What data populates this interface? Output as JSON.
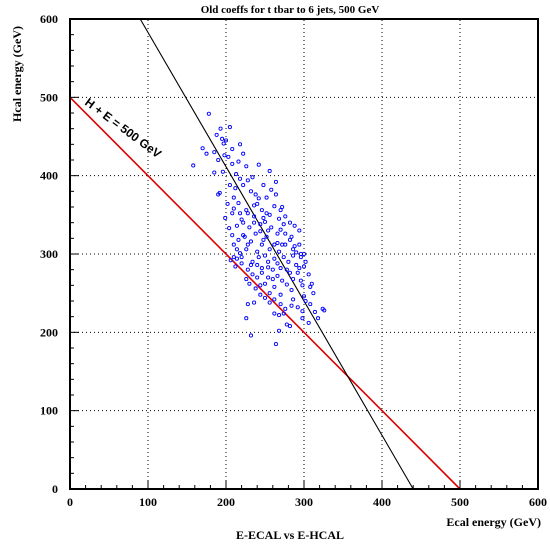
{
  "chart_data": {
    "type": "scatter",
    "title": "Old coeffs for t tbar to 6 jets, 500 GeV",
    "subtitle": "E-ECAL vs E-HCAL",
    "xlabel": "Ecal energy (GeV)",
    "ylabel": "Hcal energy (GeV)",
    "xlim": [
      0,
      600
    ],
    "ylim": [
      0,
      600
    ],
    "x_ticks": [
      0,
      100,
      200,
      300,
      400,
      500,
      600
    ],
    "y_ticks": [
      0,
      100,
      200,
      300,
      400,
      500,
      600
    ],
    "grid": true,
    "marker_color": "#0000ff",
    "annotation": "H + E = 500 GeV",
    "lines": [
      {
        "name": "H + E = 500 GeV",
        "color": "#dd0000",
        "points": [
          [
            0,
            500
          ],
          [
            500,
            0
          ]
        ]
      },
      {
        "name": "",
        "color": "#000000",
        "points": [
          [
            90,
            600
          ],
          [
            440,
            0
          ]
        ]
      }
    ],
    "points": [
      [
        193,
        460
      ],
      [
        195,
        447
      ],
      [
        197,
        441
      ],
      [
        205,
        462
      ],
      [
        178,
        479
      ],
      [
        170,
        435
      ],
      [
        158,
        413
      ],
      [
        175,
        428
      ],
      [
        185,
        430
      ],
      [
        190,
        420
      ],
      [
        198,
        426
      ],
      [
        203,
        424
      ],
      [
        208,
        415
      ],
      [
        213,
        402
      ],
      [
        196,
        405
      ],
      [
        185,
        404
      ],
      [
        192,
        378
      ],
      [
        190,
        376
      ],
      [
        205,
        388
      ],
      [
        212,
        384
      ],
      [
        218,
        396
      ],
      [
        210,
        372
      ],
      [
        216,
        365
      ],
      [
        222,
        388
      ],
      [
        228,
        394
      ],
      [
        232,
        380
      ],
      [
        238,
        376
      ],
      [
        236,
        362
      ],
      [
        242,
        371
      ],
      [
        246,
        356
      ],
      [
        226,
        356
      ],
      [
        220,
        344
      ],
      [
        214,
        336
      ],
      [
        208,
        352
      ],
      [
        204,
        333
      ],
      [
        199,
        346
      ],
      [
        230,
        334
      ],
      [
        236,
        340
      ],
      [
        244,
        329
      ],
      [
        250,
        341
      ],
      [
        256,
        350
      ],
      [
        262,
        361
      ],
      [
        268,
        345
      ],
      [
        258,
        334
      ],
      [
        270,
        331
      ],
      [
        276,
        326
      ],
      [
        282,
        318
      ],
      [
        252,
        322
      ],
      [
        246,
        312
      ],
      [
        240,
        303
      ],
      [
        232,
        316
      ],
      [
        226,
        306
      ],
      [
        218,
        301
      ],
      [
        210,
        296
      ],
      [
        206,
        292
      ],
      [
        212,
        284
      ],
      [
        220,
        288
      ],
      [
        250,
        298
      ],
      [
        256,
        306
      ],
      [
        262,
        312
      ],
      [
        268,
        303
      ],
      [
        274,
        296
      ],
      [
        280,
        290
      ],
      [
        286,
        298
      ],
      [
        290,
        286
      ],
      [
        294,
        282
      ],
      [
        300,
        284
      ],
      [
        306,
        274
      ],
      [
        290,
        302
      ],
      [
        294,
        312
      ],
      [
        266,
        288
      ],
      [
        260,
        280
      ],
      [
        254,
        283
      ],
      [
        246,
        276
      ],
      [
        240,
        286
      ],
      [
        234,
        274
      ],
      [
        226,
        268
      ],
      [
        244,
        260
      ],
      [
        238,
        256
      ],
      [
        230,
        262
      ],
      [
        250,
        262
      ],
      [
        266,
        272
      ],
      [
        272,
        266
      ],
      [
        278,
        261
      ],
      [
        284,
        254
      ],
      [
        296,
        266
      ],
      [
        308,
        258
      ],
      [
        312,
        250
      ],
      [
        302,
        240
      ],
      [
        286,
        242
      ],
      [
        292,
        232
      ],
      [
        298,
        227
      ],
      [
        308,
        236
      ],
      [
        314,
        226
      ],
      [
        318,
        218
      ],
      [
        326,
        228
      ],
      [
        324,
        230
      ],
      [
        298,
        218
      ],
      [
        306,
        212
      ],
      [
        276,
        230
      ],
      [
        270,
        236
      ],
      [
        262,
        242
      ],
      [
        256,
        238
      ],
      [
        268,
        222
      ],
      [
        274,
        224
      ],
      [
        278,
        210
      ],
      [
        268,
        202
      ],
      [
        282,
        208
      ],
      [
        262,
        224
      ],
      [
        244,
        248
      ],
      [
        236,
        238
      ],
      [
        228,
        236
      ],
      [
        226,
        218
      ],
      [
        232,
        196
      ],
      [
        264,
        185
      ],
      [
        250,
        244
      ],
      [
        234,
        290
      ],
      [
        228,
        312
      ],
      [
        222,
        324
      ],
      [
        240,
        364
      ],
      [
        252,
        372
      ],
      [
        258,
        382
      ],
      [
        264,
        392
      ],
      [
        248,
        388
      ],
      [
        234,
        398
      ],
      [
        226,
        412
      ],
      [
        216,
        418
      ],
      [
        208,
        434
      ],
      [
        200,
        445
      ],
      [
        188,
        452
      ],
      [
        222,
        428
      ],
      [
        218,
        440
      ],
      [
        242,
        414
      ],
      [
        256,
        406
      ],
      [
        264,
        376
      ],
      [
        272,
        360
      ],
      [
        276,
        348
      ],
      [
        282,
        340
      ],
      [
        288,
        336
      ],
      [
        294,
        330
      ],
      [
        272,
        312
      ],
      [
        262,
        294
      ],
      [
        254,
        290
      ],
      [
        284,
        322
      ],
      [
        288,
        310
      ],
      [
        244,
        338
      ],
      [
        238,
        326
      ],
      [
        248,
        318
      ],
      [
        224,
        322
      ],
      [
        216,
        318
      ],
      [
        214,
        306
      ],
      [
        252,
        352
      ],
      [
        270,
        356
      ],
      [
        274,
        338
      ],
      [
        242,
        296
      ],
      [
        232,
        286
      ],
      [
        278,
        280
      ],
      [
        282,
        276
      ],
      [
        270,
        282
      ],
      [
        286,
        268
      ],
      [
        292,
        276
      ],
      [
        240,
        270
      ],
      [
        254,
        270
      ],
      [
        296,
        296
      ],
      [
        300,
        300
      ],
      [
        298,
        260
      ],
      [
        300,
        246
      ],
      [
        262,
        258
      ],
      [
        260,
        268
      ],
      [
        246,
        282
      ],
      [
        256,
        250
      ],
      [
        270,
        248
      ],
      [
        284,
        234
      ],
      [
        228,
        280
      ],
      [
        220,
        296
      ],
      [
        214,
        294
      ],
      [
        210,
        312
      ],
      [
        208,
        324
      ],
      [
        202,
        364
      ],
      [
        210,
        358
      ],
      [
        218,
        352
      ],
      [
        222,
        340
      ],
      [
        228,
        352
      ],
      [
        236,
        348
      ],
      [
        248,
        346
      ],
      [
        254,
        330
      ],
      [
        266,
        326
      ],
      [
        266,
        314
      ],
      [
        276,
        312
      ],
      [
        286,
        306
      ],
      [
        296,
        300
      ],
      [
        302,
        290
      ],
      [
        310,
        262
      ]
    ]
  }
}
